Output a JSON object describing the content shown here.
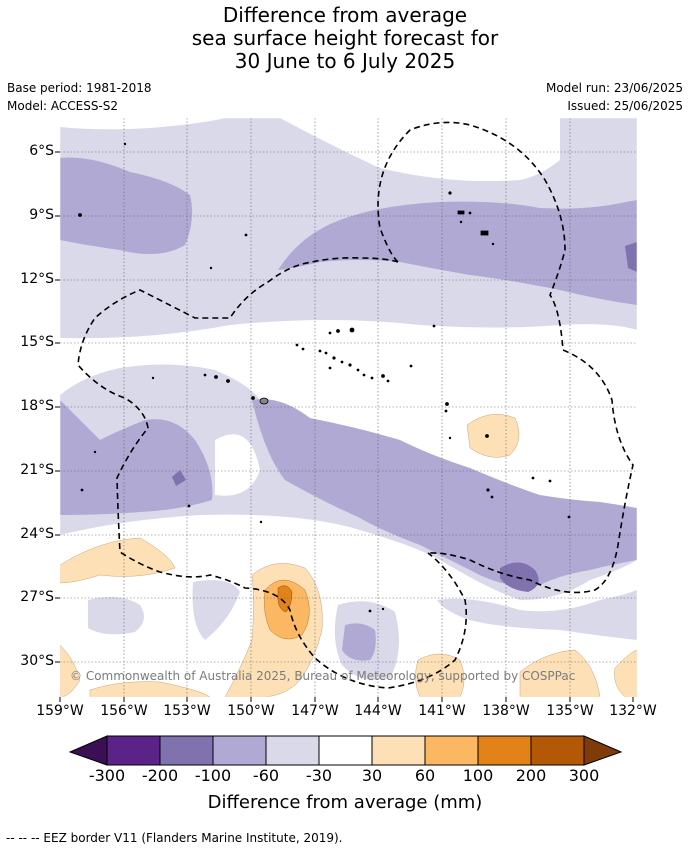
{
  "title": {
    "line1": "Difference from average",
    "line2": "sea surface height forecast for",
    "line3": "30 June to 6 July 2025"
  },
  "meta": {
    "base_period": "Base period: 1981-2018",
    "model": "Model: ACCESS-S2",
    "model_run": "Model run: 23/06/2025",
    "issued": "Issued: 25/06/2025"
  },
  "map": {
    "lat_labels": [
      "6°S",
      "9°S",
      "12°S",
      "15°S",
      "18°S",
      "21°S",
      "24°S",
      "27°S",
      "30°S"
    ],
    "lon_labels": [
      "159°W",
      "156°W",
      "153°W",
      "150°W",
      "147°W",
      "144°W",
      "141°W",
      "138°W",
      "135°W",
      "132°W"
    ],
    "credit": "© Commonwealth of Australia 2025, Bureau of Meteorology, supported by COSPPac"
  },
  "colorbar": {
    "title": "Difference from average (mm)",
    "ticks": [
      "-300",
      "-200",
      "-100",
      "-60",
      "-30",
      "30",
      "60",
      "100",
      "200",
      "300"
    ],
    "colors": {
      "below_-300": "#3b0f56",
      "-300_-200": "#5b2387",
      "-200_-100": "#8072ae",
      "-100_-60": "#b0a9d3",
      "-60_-30": "#d9d9ea",
      "-30_30": "#ffffff",
      "30_60": "#fee0b6",
      "60_100": "#fbb761",
      "100_200": "#e28219",
      "200_300": "#b35806",
      "above_300": "#7f3b08"
    }
  },
  "legend": {
    "eez_note": "--  --  -- EEZ border V11 (Flanders Marine Institute, 2019)."
  }
}
